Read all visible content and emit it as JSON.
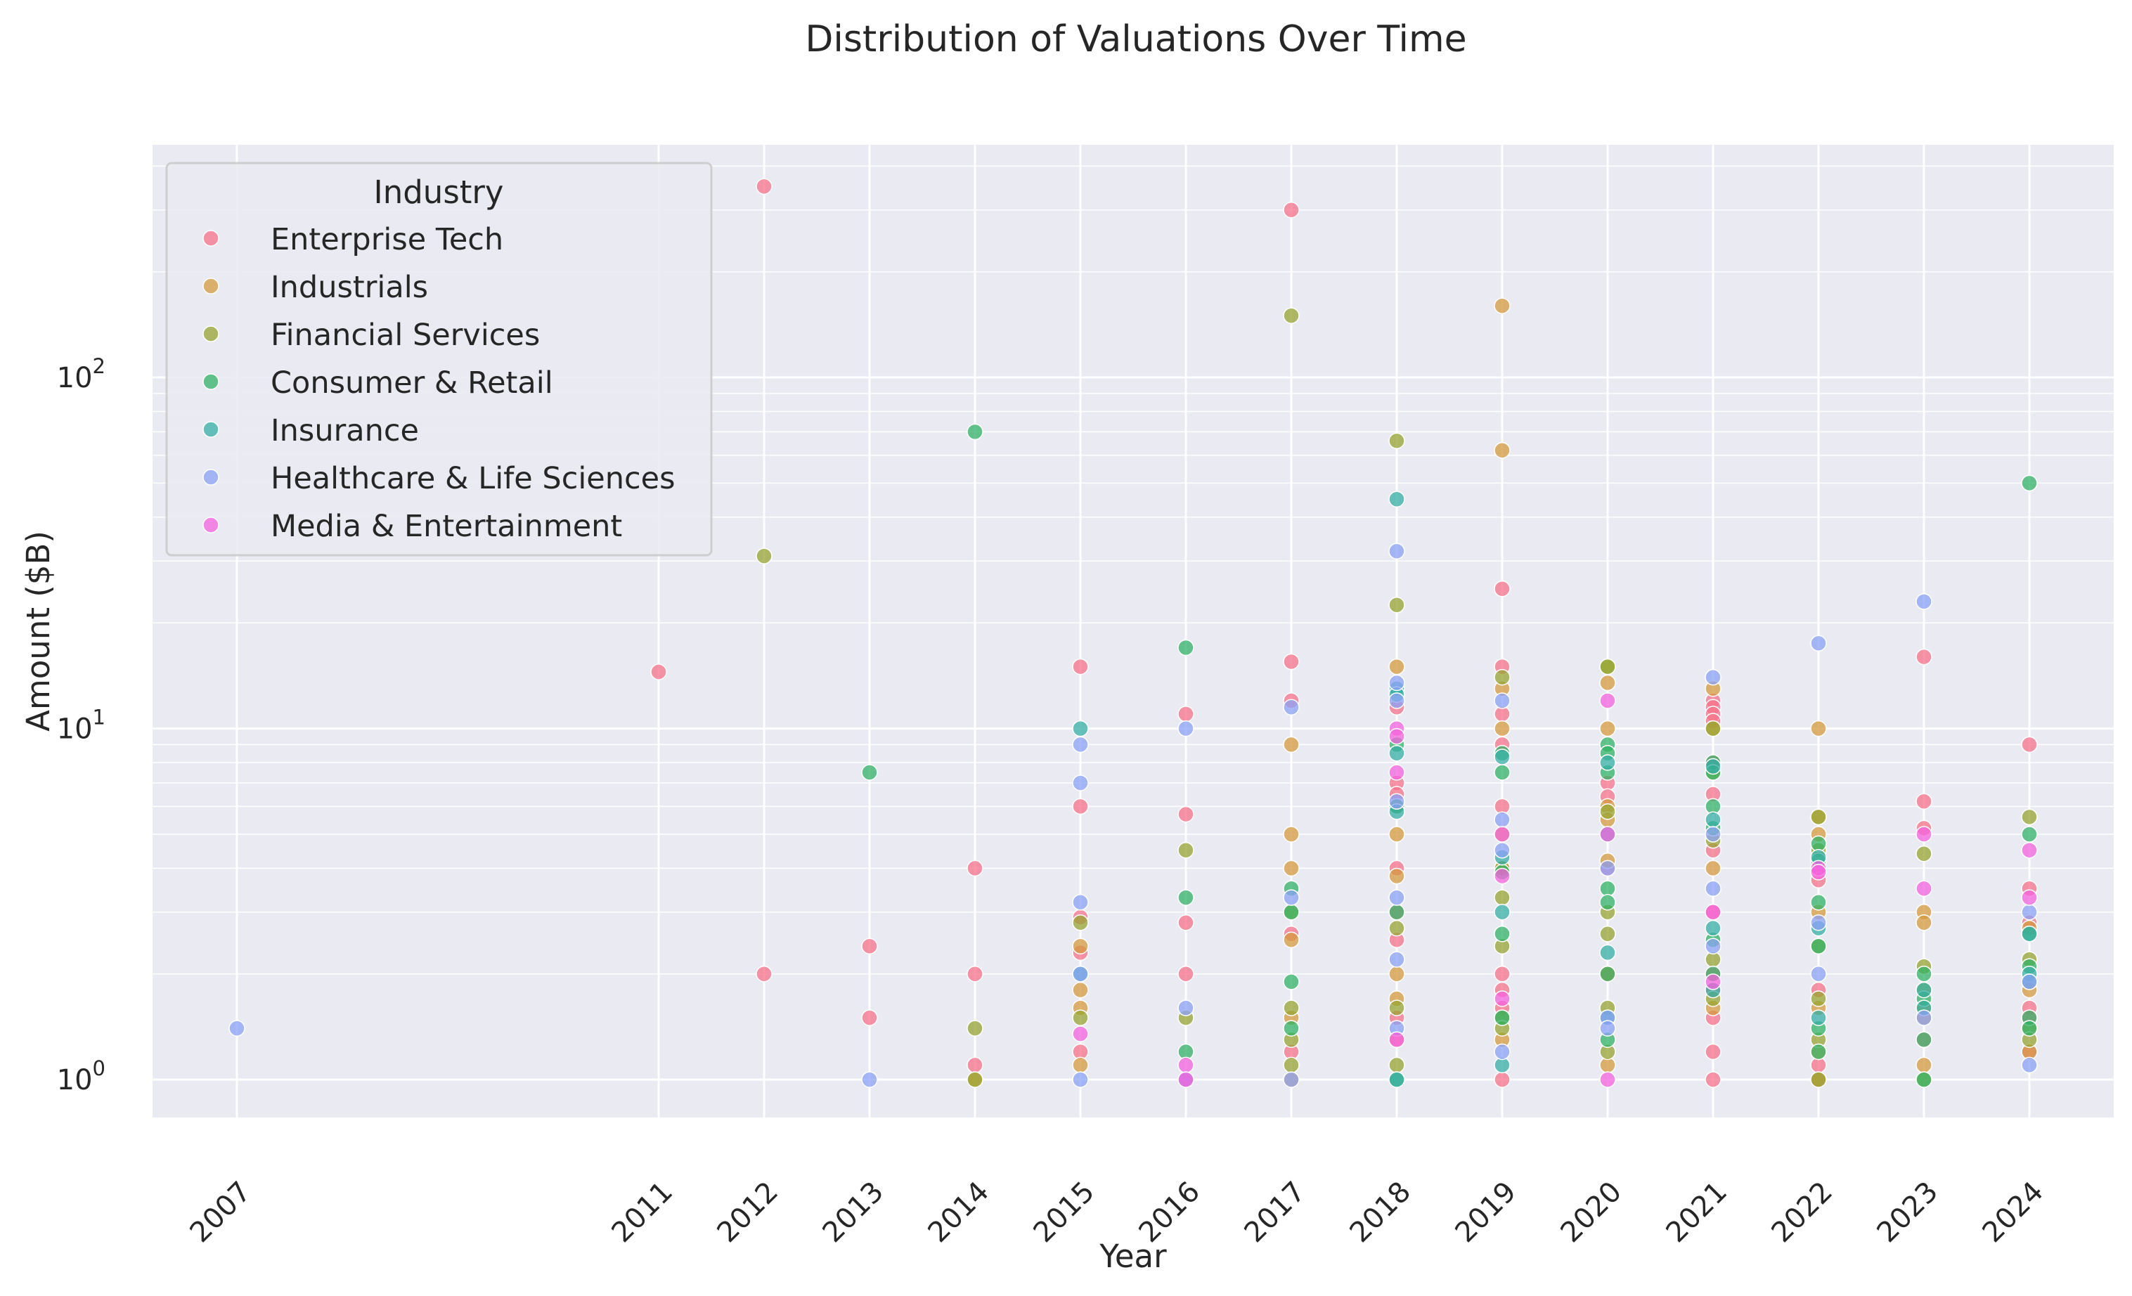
{
  "chart_data": {
    "type": "scatter",
    "title": "Distribution of Valuations Over Time",
    "xlabel": "Year",
    "ylabel": "Amount ($B)",
    "yscale": "log",
    "ylim": [
      0.78,
      460
    ],
    "xlim": [
      2006.2,
      2024.8
    ],
    "grid": true,
    "legend": {
      "title": "Industry",
      "placement": "top-left"
    },
    "x_ticks": [
      "2007",
      "2011",
      "2012",
      "2013",
      "2014",
      "2015",
      "2016",
      "2017",
      "2018",
      "2019",
      "2020",
      "2021",
      "2022",
      "2023",
      "2024"
    ],
    "y_ticks": [
      {
        "value": 1,
        "base": "10",
        "exp": "0"
      },
      {
        "value": 10,
        "base": "10",
        "exp": "1"
      },
      {
        "value": 100,
        "base": "10",
        "exp": "2"
      }
    ],
    "series": [
      {
        "name": "Enterprise Tech",
        "color": "#f77189",
        "points": [
          [
            2011,
            14.5
          ],
          [
            2012,
            350
          ],
          [
            2012,
            2
          ],
          [
            2013,
            2.4
          ],
          [
            2013,
            1.5
          ],
          [
            2014,
            4
          ],
          [
            2014,
            2
          ],
          [
            2014,
            1.1
          ],
          [
            2015,
            15
          ],
          [
            2015,
            6
          ],
          [
            2015,
            2.3
          ],
          [
            2015,
            2.9
          ],
          [
            2015,
            1.2
          ],
          [
            2016,
            11
          ],
          [
            2016,
            5.7
          ],
          [
            2016,
            2.8
          ],
          [
            2016,
            2
          ],
          [
            2016,
            1
          ],
          [
            2017,
            15.5
          ],
          [
            2017,
            12
          ],
          [
            2017,
            300
          ],
          [
            2017,
            2.6
          ],
          [
            2017,
            1.2
          ],
          [
            2018,
            11.5
          ],
          [
            2018,
            7
          ],
          [
            2018,
            6.5
          ],
          [
            2018,
            4
          ],
          [
            2018,
            3
          ],
          [
            2018,
            2.5
          ],
          [
            2018,
            1.5
          ],
          [
            2018,
            1.3
          ],
          [
            2019,
            25
          ],
          [
            2019,
            15
          ],
          [
            2019,
            11
          ],
          [
            2019,
            9
          ],
          [
            2019,
            6
          ],
          [
            2019,
            2
          ],
          [
            2019,
            1.8
          ],
          [
            2019,
            1.6
          ],
          [
            2019,
            1
          ],
          [
            2020,
            7
          ],
          [
            2020,
            6.4
          ],
          [
            2020,
            4
          ],
          [
            2020,
            2
          ],
          [
            2021,
            12
          ],
          [
            2021,
            11.5
          ],
          [
            2021,
            11
          ],
          [
            2021,
            10.5
          ],
          [
            2021,
            8
          ],
          [
            2021,
            6.5
          ],
          [
            2021,
            4.5
          ],
          [
            2021,
            3
          ],
          [
            2021,
            2
          ],
          [
            2021,
            1.8
          ],
          [
            2021,
            1.5
          ],
          [
            2021,
            1.2
          ],
          [
            2021,
            1
          ],
          [
            2022,
            4
          ],
          [
            2022,
            3.7
          ],
          [
            2022,
            1.8
          ],
          [
            2022,
            1.1
          ],
          [
            2022,
            1
          ],
          [
            2023,
            16
          ],
          [
            2023,
            6.2
          ],
          [
            2023,
            5.2
          ],
          [
            2023,
            1.3
          ],
          [
            2024,
            9
          ],
          [
            2024,
            3.5
          ],
          [
            2024,
            2.8
          ],
          [
            2024,
            1.6
          ],
          [
            2024,
            1.5
          ],
          [
            2024,
            1.2
          ]
        ]
      },
      {
        "name": "Industrials",
        "color": "#d49a3e",
        "points": [
          [
            2014,
            1
          ],
          [
            2015,
            1.8
          ],
          [
            2015,
            1.6
          ],
          [
            2015,
            1.1
          ],
          [
            2015,
            2.4
          ],
          [
            2017,
            9
          ],
          [
            2017,
            5
          ],
          [
            2017,
            4
          ],
          [
            2017,
            2.5
          ],
          [
            2017,
            1.5
          ],
          [
            2017,
            1
          ],
          [
            2018,
            15
          ],
          [
            2018,
            5
          ],
          [
            2018,
            3.8
          ],
          [
            2018,
            2
          ],
          [
            2018,
            1.7
          ],
          [
            2019,
            160
          ],
          [
            2019,
            62
          ],
          [
            2019,
            13
          ],
          [
            2019,
            10
          ],
          [
            2019,
            5
          ],
          [
            2019,
            4
          ],
          [
            2019,
            1.3
          ],
          [
            2020,
            13.5
          ],
          [
            2020,
            10
          ],
          [
            2020,
            6
          ],
          [
            2020,
            5.5
          ],
          [
            2020,
            4.2
          ],
          [
            2020,
            2
          ],
          [
            2020,
            1.1
          ],
          [
            2021,
            13
          ],
          [
            2021,
            10
          ],
          [
            2021,
            4
          ],
          [
            2021,
            1.6
          ],
          [
            2022,
            10
          ],
          [
            2022,
            5.6
          ],
          [
            2022,
            5
          ],
          [
            2022,
            3
          ],
          [
            2022,
            1.6
          ],
          [
            2022,
            1.2
          ],
          [
            2022,
            1
          ],
          [
            2023,
            3
          ],
          [
            2023,
            2.8
          ],
          [
            2023,
            1.5
          ],
          [
            2023,
            1.1
          ],
          [
            2024,
            2.7
          ],
          [
            2024,
            1.8
          ],
          [
            2024,
            1.2
          ]
        ]
      },
      {
        "name": "Financial Services",
        "color": "#97a431",
        "points": [
          [
            2012,
            31
          ],
          [
            2014,
            1.4
          ],
          [
            2014,
            1
          ],
          [
            2015,
            2.8
          ],
          [
            2015,
            1.5
          ],
          [
            2016,
            4.5
          ],
          [
            2016,
            1.5
          ],
          [
            2017,
            150
          ],
          [
            2017,
            3
          ],
          [
            2017,
            1.6
          ],
          [
            2017,
            1.3
          ],
          [
            2017,
            1.1
          ],
          [
            2018,
            66
          ],
          [
            2018,
            22.5
          ],
          [
            2018,
            6
          ],
          [
            2018,
            2.7
          ],
          [
            2018,
            1.6
          ],
          [
            2018,
            1.1
          ],
          [
            2019,
            14
          ],
          [
            2019,
            4
          ],
          [
            2019,
            3.3
          ],
          [
            2019,
            2.4
          ],
          [
            2019,
            1.5
          ],
          [
            2019,
            1.4
          ],
          [
            2020,
            15
          ],
          [
            2020,
            15
          ],
          [
            2020,
            5.8
          ],
          [
            2020,
            3
          ],
          [
            2020,
            2.6
          ],
          [
            2020,
            1.6
          ],
          [
            2020,
            1.2
          ],
          [
            2021,
            10
          ],
          [
            2021,
            7.5
          ],
          [
            2021,
            4.8
          ],
          [
            2021,
            2.2
          ],
          [
            2021,
            1.7
          ],
          [
            2022,
            5.6
          ],
          [
            2022,
            4.5
          ],
          [
            2022,
            2.4
          ],
          [
            2022,
            1.7
          ],
          [
            2022,
            1.3
          ],
          [
            2022,
            1
          ],
          [
            2023,
            4.4
          ],
          [
            2023,
            2.1
          ],
          [
            2023,
            1.8
          ],
          [
            2023,
            1.6
          ],
          [
            2023,
            1
          ],
          [
            2024,
            5.6
          ],
          [
            2024,
            2.2
          ],
          [
            2024,
            1.4
          ],
          [
            2024,
            1.3
          ]
        ]
      },
      {
        "name": "Consumer & Retail",
        "color": "#32b166",
        "points": [
          [
            2013,
            7.5
          ],
          [
            2014,
            70
          ],
          [
            2016,
            17
          ],
          [
            2016,
            3.3
          ],
          [
            2016,
            1.2
          ],
          [
            2017,
            3.5
          ],
          [
            2017,
            3
          ],
          [
            2017,
            1.9
          ],
          [
            2017,
            1.4
          ],
          [
            2018,
            9
          ],
          [
            2018,
            6
          ],
          [
            2018,
            3
          ],
          [
            2018,
            1
          ],
          [
            2019,
            8.5
          ],
          [
            2019,
            7.5
          ],
          [
            2019,
            3.9
          ],
          [
            2019,
            2.6
          ],
          [
            2019,
            1.5
          ],
          [
            2020,
            9
          ],
          [
            2020,
            8.5
          ],
          [
            2020,
            7.5
          ],
          [
            2020,
            3.5
          ],
          [
            2020,
            3.2
          ],
          [
            2020,
            2
          ],
          [
            2020,
            1.3
          ],
          [
            2021,
            8
          ],
          [
            2021,
            7.5
          ],
          [
            2021,
            6
          ],
          [
            2021,
            5.2
          ],
          [
            2021,
            2.5
          ],
          [
            2021,
            2
          ],
          [
            2022,
            4.7
          ],
          [
            2022,
            4.2
          ],
          [
            2022,
            3.2
          ],
          [
            2022,
            2.4
          ],
          [
            2022,
            1.4
          ],
          [
            2022,
            1.2
          ],
          [
            2023,
            2
          ],
          [
            2023,
            1.7
          ],
          [
            2023,
            1.3
          ],
          [
            2023,
            1
          ],
          [
            2024,
            50
          ],
          [
            2024,
            5
          ],
          [
            2024,
            2.6
          ],
          [
            2024,
            2.1
          ],
          [
            2024,
            1.5
          ],
          [
            2024,
            1.4
          ]
        ]
      },
      {
        "name": "Insurance",
        "color": "#36ada4",
        "points": [
          [
            2015,
            10
          ],
          [
            2015,
            2
          ],
          [
            2018,
            45
          ],
          [
            2018,
            13
          ],
          [
            2018,
            12.5
          ],
          [
            2018,
            8.5
          ],
          [
            2018,
            5.8
          ],
          [
            2018,
            1
          ],
          [
            2019,
            8.3
          ],
          [
            2019,
            4.3
          ],
          [
            2019,
            3
          ],
          [
            2019,
            1.1
          ],
          [
            2020,
            8
          ],
          [
            2020,
            5
          ],
          [
            2020,
            2.3
          ],
          [
            2020,
            1.5
          ],
          [
            2021,
            7.8
          ],
          [
            2021,
            5.5
          ],
          [
            2021,
            2.7
          ],
          [
            2021,
            1.8
          ],
          [
            2022,
            4.3
          ],
          [
            2022,
            2.7
          ],
          [
            2022,
            1.5
          ],
          [
            2023,
            1.8
          ],
          [
            2023,
            1.6
          ],
          [
            2024,
            2.6
          ],
          [
            2024,
            2
          ],
          [
            2024,
            1.9
          ]
        ]
      },
      {
        "name": "Healthcare & Life Sciences",
        "color": "#8ba1f5",
        "points": [
          [
            2007,
            1.4
          ],
          [
            2013,
            1
          ],
          [
            2015,
            9
          ],
          [
            2015,
            7
          ],
          [
            2015,
            3.2
          ],
          [
            2015,
            2
          ],
          [
            2015,
            1
          ],
          [
            2016,
            10
          ],
          [
            2016,
            1.6
          ],
          [
            2016,
            1
          ],
          [
            2017,
            11.5
          ],
          [
            2017,
            3.3
          ],
          [
            2017,
            1
          ],
          [
            2018,
            32
          ],
          [
            2018,
            13.5
          ],
          [
            2018,
            12
          ],
          [
            2018,
            6.2
          ],
          [
            2018,
            3.3
          ],
          [
            2018,
            2.2
          ],
          [
            2018,
            1.4
          ],
          [
            2019,
            12
          ],
          [
            2019,
            5.5
          ],
          [
            2019,
            4.5
          ],
          [
            2019,
            1.2
          ],
          [
            2020,
            4
          ],
          [
            2020,
            1.5
          ],
          [
            2020,
            1.4
          ],
          [
            2021,
            14
          ],
          [
            2021,
            5
          ],
          [
            2021,
            3.5
          ],
          [
            2021,
            2.4
          ],
          [
            2022,
            17.5
          ],
          [
            2022,
            2.8
          ],
          [
            2022,
            2
          ],
          [
            2023,
            23
          ],
          [
            2023,
            1.5
          ],
          [
            2024,
            3
          ],
          [
            2024,
            1.9
          ],
          [
            2024,
            1.1
          ]
        ]
      },
      {
        "name": "Media & Entertainment",
        "color": "#f461dd",
        "points": [
          [
            2015,
            1.35
          ],
          [
            2016,
            1.1
          ],
          [
            2016,
            1
          ],
          [
            2018,
            10
          ],
          [
            2018,
            9.5
          ],
          [
            2018,
            7.5
          ],
          [
            2018,
            1.3
          ],
          [
            2019,
            5
          ],
          [
            2019,
            3.8
          ],
          [
            2019,
            1.7
          ],
          [
            2020,
            12
          ],
          [
            2020,
            5
          ],
          [
            2020,
            1
          ],
          [
            2021,
            3
          ],
          [
            2021,
            1.9
          ],
          [
            2022,
            4
          ],
          [
            2022,
            3.9
          ],
          [
            2023,
            5
          ],
          [
            2023,
            3.5
          ],
          [
            2024,
            4.5
          ],
          [
            2024,
            3.3
          ]
        ]
      }
    ]
  }
}
